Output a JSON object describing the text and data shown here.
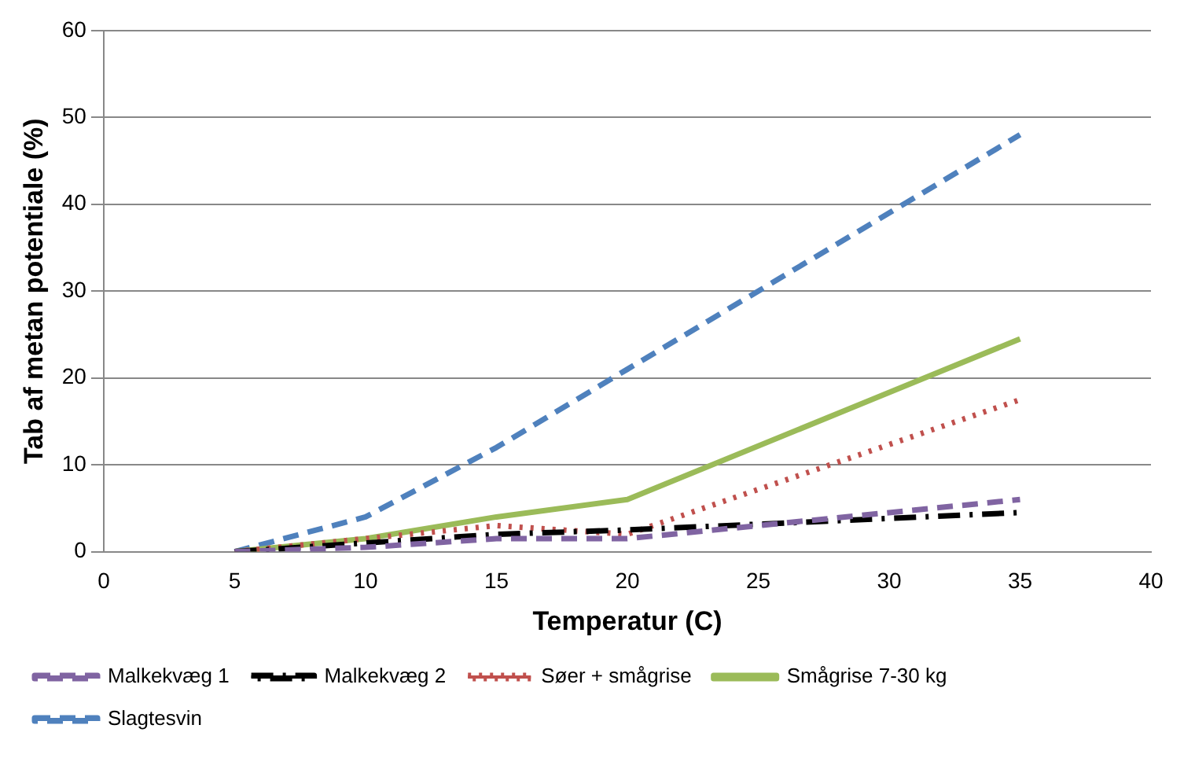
{
  "chart_data": {
    "type": "line",
    "xlabel": "Temperatur (C)",
    "ylabel": "Tab af metan potentiale (%)",
    "x": [
      5,
      10,
      15,
      20,
      35
    ],
    "series": [
      {
        "name": "Malkekvæg 1",
        "color": "#8064a2",
        "line_style": "dashed",
        "values": [
          0,
          0.5,
          1.5,
          1.5,
          6
        ]
      },
      {
        "name": "Malkekvæg 2",
        "color": "#000000",
        "line_style": "dashdot",
        "values": [
          0,
          1,
          2,
          2.5,
          4.5
        ]
      },
      {
        "name": "Søer + smågrise",
        "color": "#c0504d",
        "line_style": "dotted",
        "values": [
          0,
          1.5,
          3,
          2,
          17.5
        ]
      },
      {
        "name": "Smågrise 7-30 kg",
        "color": "#9bbb59",
        "line_style": "solid",
        "values": [
          0,
          1.5,
          4,
          6,
          24.5
        ]
      },
      {
        "name": "Slagtesvin",
        "color": "#4f81bd",
        "line_style": "dashed",
        "values": [
          0,
          4,
          12,
          21,
          48
        ]
      }
    ],
    "xlim": [
      0,
      40
    ],
    "xticks": [
      0,
      5,
      10,
      15,
      20,
      25,
      30,
      35,
      40
    ],
    "ylim": [
      0,
      60
    ],
    "yticks": [
      0,
      10,
      20,
      30,
      40,
      50,
      60
    ],
    "grid": "y",
    "legend": "bottom",
    "marker": "none"
  }
}
